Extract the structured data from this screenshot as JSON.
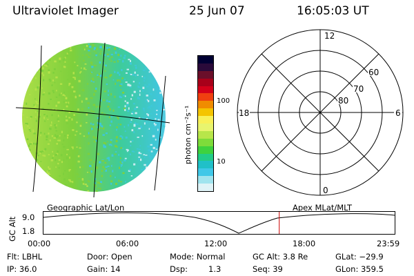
{
  "header": {
    "title": "Ultraviolet Imager",
    "date": "25 Jun 07",
    "time": "16:05:03 UT"
  },
  "colorbar": {
    "unit_label": "photon cm⁻²s⁻¹",
    "ticks": [
      "100",
      "10"
    ],
    "colors": [
      "#000033",
      "#2a0a3a",
      "#6a0f2a",
      "#a8001a",
      "#d4001a",
      "#f04010",
      "#f08c00",
      "#f4c400",
      "#f8f058",
      "#e8f46e",
      "#b8e64a",
      "#7edc3a",
      "#3ed23e",
      "#22cc88",
      "#20c0c8",
      "#40c8e8",
      "#a0e4ee",
      "#dff3f7"
    ]
  },
  "left_panel": {
    "label": "Geographic Lat/Lon",
    "colors": {
      "green": "#7ed03c",
      "lime": "#b4e14a",
      "cyan": "#3ec8d8",
      "pale": "#c9ecf0"
    }
  },
  "right_panel": {
    "label": "Apex MLat/MLT",
    "mlt_labels": {
      "top": "12",
      "bottom": "0",
      "left": "18",
      "right": "6"
    },
    "lat_labels": [
      "60",
      "70",
      "80"
    ]
  },
  "altitude_plot": {
    "ylabel": "GC Alt",
    "yticks": [
      "9.0",
      "1.8"
    ],
    "xticks": [
      "00:00",
      "06:00",
      "12:00",
      "18:00",
      "23:59"
    ],
    "marker_color": "#cc0000",
    "marker_time_hours": 16.08
  },
  "footer": {
    "rows": [
      [
        "Flt: LBHL",
        "Door: Open",
        "Mode: Normal",
        "GC Alt: 3.8 Re",
        "GLat: −29.9"
      ],
      [
        "IP: 36.0",
        "Gain: 14",
        "Dsp:",
        "1.3",
        "Seq: 39",
        "GLon: 359.5"
      ]
    ]
  }
}
